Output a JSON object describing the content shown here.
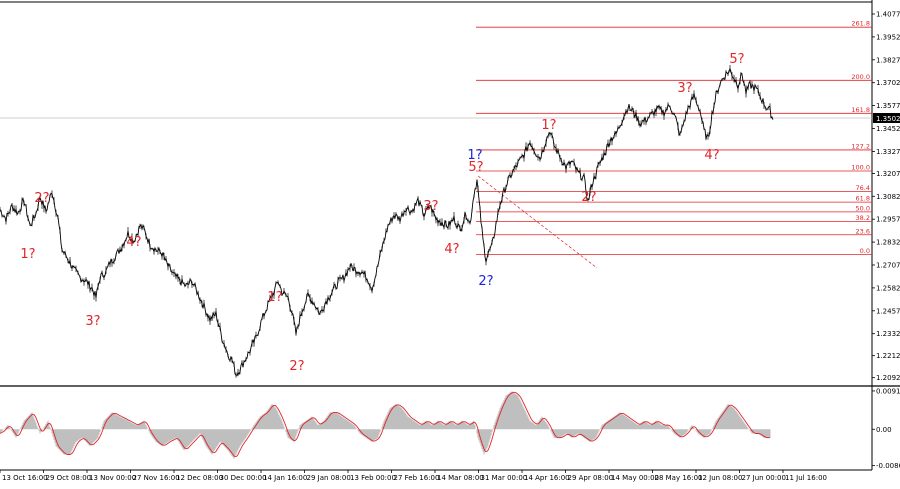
{
  "chart_data": {
    "type": "line",
    "main": {
      "instrument_price_current": "1.3502",
      "y_ticks": [
        "1.4077",
        "1.3952",
        "1.3827",
        "1.3702",
        "1.3577",
        "1.3452",
        "1.3327",
        "1.3207",
        "1.3082",
        "1.2957",
        "1.2832",
        "1.2707",
        "1.2582",
        "1.2457",
        "1.2332",
        "1.2212",
        "1.2092"
      ],
      "ylim": [
        1.2052,
        1.4137
      ],
      "fib_levels": [
        {
          "label": "261.8",
          "value": 1.4005
        },
        {
          "label": "200.0",
          "value": 1.3715
        },
        {
          "label": "161.8",
          "value": 1.3535
        },
        {
          "label": "127.2",
          "value": 1.3335
        },
        {
          "label": "100.0",
          "value": 1.322
        },
        {
          "label": "76.4",
          "value": 1.3108
        },
        {
          "label": "61.8",
          "value": 1.305
        },
        {
          "label": "50.0",
          "value": 1.2997
        },
        {
          "label": "38.2",
          "value": 1.2945
        },
        {
          "label": "23.6",
          "value": 1.2872
        },
        {
          "label": "0.0",
          "value": 1.2765
        }
      ],
      "price_series": [
        [
          0,
          1.301
        ],
        [
          6,
          1.296
        ],
        [
          12,
          1.303
        ],
        [
          18,
          1.299
        ],
        [
          24,
          1.306
        ],
        [
          30,
          1.292
        ],
        [
          36,
          1.299
        ],
        [
          40,
          1.308
        ],
        [
          46,
          1.3
        ],
        [
          52,
          1.311
        ],
        [
          58,
          1.296
        ],
        [
          62,
          1.279
        ],
        [
          68,
          1.274
        ],
        [
          74,
          1.268
        ],
        [
          80,
          1.264
        ],
        [
          86,
          1.262
        ],
        [
          92,
          1.258
        ],
        [
          96,
          1.253
        ],
        [
          100,
          1.264
        ],
        [
          106,
          1.267
        ],
        [
          110,
          1.272
        ],
        [
          116,
          1.276
        ],
        [
          122,
          1.281
        ],
        [
          128,
          1.288
        ],
        [
          134,
          1.284
        ],
        [
          140,
          1.292
        ],
        [
          144,
          1.29
        ],
        [
          150,
          1.282
        ],
        [
          156,
          1.279
        ],
        [
          162,
          1.277
        ],
        [
          168,
          1.27
        ],
        [
          174,
          1.265
        ],
        [
          180,
          1.262
        ],
        [
          186,
          1.259
        ],
        [
          192,
          1.262
        ],
        [
          198,
          1.255
        ],
        [
          204,
          1.248
        ],
        [
          210,
          1.241
        ],
        [
          216,
          1.244
        ],
        [
          222,
          1.231
        ],
        [
          228,
          1.222
        ],
        [
          232,
          1.219
        ],
        [
          236,
          1.211
        ],
        [
          240,
          1.214
        ],
        [
          244,
          1.218
        ],
        [
          250,
          1.224
        ],
        [
          256,
          1.231
        ],
        [
          262,
          1.241
        ],
        [
          268,
          1.249
        ],
        [
          274,
          1.256
        ],
        [
          278,
          1.262
        ],
        [
          282,
          1.256
        ],
        [
          288,
          1.253
        ],
        [
          292,
          1.245
        ],
        [
          296,
          1.233
        ],
        [
          302,
          1.246
        ],
        [
          308,
          1.254
        ],
        [
          314,
          1.25
        ],
        [
          320,
          1.244
        ],
        [
          326,
          1.251
        ],
        [
          332,
          1.256
        ],
        [
          338,
          1.261
        ],
        [
          344,
          1.264
        ],
        [
          350,
          1.27
        ],
        [
          356,
          1.268
        ],
        [
          362,
          1.267
        ],
        [
          368,
          1.263
        ],
        [
          372,
          1.258
        ],
        [
          376,
          1.266
        ],
        [
          382,
          1.28
        ],
        [
          388,
          1.292
        ],
        [
          394,
          1.298
        ],
        [
          400,
          1.296
        ],
        [
          406,
          1.302
        ],
        [
          412,
          1.3
        ],
        [
          418,
          1.306
        ],
        [
          424,
          1.298
        ],
        [
          430,
          1.303
        ],
        [
          436,
          1.296
        ],
        [
          442,
          1.294
        ],
        [
          448,
          1.292
        ],
        [
          454,
          1.296
        ],
        [
          460,
          1.29
        ],
        [
          466,
          1.299
        ],
        [
          470,
          1.293
        ],
        [
          474,
          1.31
        ],
        [
          477,
          1.317
        ],
        [
          480,
          1.3
        ],
        [
          483,
          1.284
        ],
        [
          486,
          1.274
        ],
        [
          489,
          1.278
        ],
        [
          492,
          1.281
        ],
        [
          496,
          1.293
        ],
        [
          500,
          1.304
        ],
        [
          506,
          1.314
        ],
        [
          512,
          1.321
        ],
        [
          518,
          1.326
        ],
        [
          524,
          1.331
        ],
        [
          530,
          1.338
        ],
        [
          536,
          1.332
        ],
        [
          540,
          1.329
        ],
        [
          546,
          1.339
        ],
        [
          550,
          1.344
        ],
        [
          554,
          1.336
        ],
        [
          560,
          1.33
        ],
        [
          566,
          1.324
        ],
        [
          572,
          1.327
        ],
        [
          578,
          1.321
        ],
        [
          584,
          1.318
        ],
        [
          588,
          1.305
        ],
        [
          592,
          1.315
        ],
        [
          598,
          1.324
        ],
        [
          604,
          1.331
        ],
        [
          610,
          1.339
        ],
        [
          616,
          1.342
        ],
        [
          622,
          1.35
        ],
        [
          628,
          1.357
        ],
        [
          634,
          1.354
        ],
        [
          640,
          1.348
        ],
        [
          646,
          1.35
        ],
        [
          652,
          1.353
        ],
        [
          658,
          1.356
        ],
        [
          664,
          1.354
        ],
        [
          670,
          1.358
        ],
        [
          676,
          1.35
        ],
        [
          680,
          1.341
        ],
        [
          684,
          1.349
        ],
        [
          688,
          1.356
        ],
        [
          694,
          1.363
        ],
        [
          700,
          1.355
        ],
        [
          704,
          1.344
        ],
        [
          708,
          1.339
        ],
        [
          712,
          1.353
        ],
        [
          716,
          1.363
        ],
        [
          720,
          1.37
        ],
        [
          726,
          1.375
        ],
        [
          730,
          1.377
        ],
        [
          734,
          1.373
        ],
        [
          738,
          1.369
        ],
        [
          742,
          1.375
        ],
        [
          746,
          1.365
        ],
        [
          750,
          1.369
        ],
        [
          756,
          1.367
        ],
        [
          762,
          1.361
        ],
        [
          766,
          1.357
        ],
        [
          770,
          1.355
        ],
        [
          773,
          1.35
        ]
      ],
      "wave_labels": [
        {
          "text": "2?",
          "color": "red"
        },
        {
          "text": "1?",
          "color": "red"
        },
        {
          "text": "3?",
          "color": "red"
        },
        {
          "text": "4?",
          "color": "red"
        },
        {
          "text": "2?",
          "color": "red"
        },
        {
          "text": "1?",
          "color": "red"
        },
        {
          "text": "3?",
          "color": "red"
        },
        {
          "text": "4?",
          "color": "red"
        },
        {
          "text": "1?",
          "color": "blue"
        },
        {
          "text": "5?",
          "color": "red"
        },
        {
          "text": "2?",
          "color": "blue"
        },
        {
          "text": "1?",
          "color": "red"
        },
        {
          "text": "2?",
          "color": "red"
        },
        {
          "text": "3?",
          "color": "red"
        },
        {
          "text": "4?",
          "color": "red"
        },
        {
          "text": "5?",
          "color": "red"
        }
      ]
    },
    "indicator": {
      "y_ticks": [
        "0.0091",
        "0.00",
        "-0.00862"
      ],
      "ylim": [
        -0.0092,
        0.0098
      ],
      "histogram": [
        [
          0,
          -0.001
        ],
        [
          8,
          0.001
        ],
        [
          16,
          -0.002
        ],
        [
          24,
          0.002
        ],
        [
          32,
          0.004
        ],
        [
          40,
          -0.001
        ],
        [
          48,
          0.002
        ],
        [
          56,
          -0.004
        ],
        [
          64,
          -0.006
        ],
        [
          70,
          -0.006
        ],
        [
          76,
          -0.003
        ],
        [
          82,
          -0.002
        ],
        [
          90,
          -0.004
        ],
        [
          98,
          -0.002
        ],
        [
          104,
          0.002
        ],
        [
          112,
          0.004
        ],
        [
          120,
          0.003
        ],
        [
          128,
          0.002
        ],
        [
          136,
          0.001
        ],
        [
          144,
          0.002
        ],
        [
          150,
          -0.001
        ],
        [
          156,
          -0.003
        ],
        [
          162,
          -0.004
        ],
        [
          168,
          -0.003
        ],
        [
          176,
          -0.002
        ],
        [
          184,
          -0.005
        ],
        [
          192,
          -0.003
        ],
        [
          200,
          -0.001
        ],
        [
          206,
          -0.004
        ],
        [
          212,
          -0.006
        ],
        [
          220,
          -0.003
        ],
        [
          228,
          -0.005
        ],
        [
          234,
          -0.007
        ],
        [
          240,
          -0.004
        ],
        [
          246,
          -0.002
        ],
        [
          254,
          0.001
        ],
        [
          260,
          0.003
        ],
        [
          266,
          0.004
        ],
        [
          272,
          0.006
        ],
        [
          276,
          0.005
        ],
        [
          282,
          0.002
        ],
        [
          288,
          -0.002
        ],
        [
          294,
          -0.003
        ],
        [
          300,
          0.001
        ],
        [
          306,
          0.002
        ],
        [
          312,
          0.003
        ],
        [
          318,
          0.001
        ],
        [
          324,
          0.002
        ],
        [
          330,
          0.004
        ],
        [
          336,
          0.004
        ],
        [
          342,
          0.003
        ],
        [
          348,
          0.002
        ],
        [
          354,
          0.001
        ],
        [
          360,
          -0.001
        ],
        [
          366,
          -0.002
        ],
        [
          372,
          -0.003
        ],
        [
          378,
          -0.002
        ],
        [
          384,
          0.002
        ],
        [
          390,
          0.005
        ],
        [
          396,
          0.006
        ],
        [
          402,
          0.005
        ],
        [
          408,
          0.003
        ],
        [
          414,
          0.002
        ],
        [
          420,
          0.001
        ],
        [
          426,
          0.002
        ],
        [
          432,
          0.001
        ],
        [
          438,
          0.002
        ],
        [
          444,
          0.001
        ],
        [
          450,
          0.002
        ],
        [
          456,
          0.001
        ],
        [
          462,
          0.002
        ],
        [
          468,
          0.001
        ],
        [
          474,
          0.002
        ],
        [
          478,
          -0.002
        ],
        [
          484,
          -0.006
        ],
        [
          488,
          -0.004
        ],
        [
          494,
          0.001
        ],
        [
          500,
          0.005
        ],
        [
          506,
          0.008
        ],
        [
          512,
          0.009
        ],
        [
          518,
          0.008
        ],
        [
          524,
          0.005
        ],
        [
          530,
          0.002
        ],
        [
          536,
          0.001
        ],
        [
          542,
          0.003
        ],
        [
          548,
          0.001
        ],
        [
          554,
          -0.002
        ],
        [
          560,
          -0.002
        ],
        [
          566,
          -0.001
        ],
        [
          572,
          -0.002
        ],
        [
          578,
          -0.001
        ],
        [
          584,
          -0.002
        ],
        [
          590,
          -0.003
        ],
        [
          596,
          -0.002
        ],
        [
          602,
          0.001
        ],
        [
          608,
          0.002
        ],
        [
          614,
          0.003
        ],
        [
          620,
          0.004
        ],
        [
          626,
          0.003
        ],
        [
          632,
          0.002
        ],
        [
          638,
          0.001
        ],
        [
          644,
          0.002
        ],
        [
          650,
          0.001
        ],
        [
          656,
          0.002
        ],
        [
          662,
          0.001
        ],
        [
          668,
          0.001
        ],
        [
          674,
          -0.001
        ],
        [
          680,
          -0.002
        ],
        [
          686,
          -0.001
        ],
        [
          692,
          0.001
        ],
        [
          698,
          -0.001
        ],
        [
          704,
          -0.002
        ],
        [
          710,
          -0.001
        ],
        [
          716,
          0.002
        ],
        [
          722,
          0.004
        ],
        [
          728,
          0.006
        ],
        [
          734,
          0.005
        ],
        [
          740,
          0.003
        ],
        [
          746,
          0.001
        ],
        [
          752,
          -0.001
        ],
        [
          758,
          -0.001
        ],
        [
          764,
          -0.002
        ],
        [
          770,
          -0.002
        ]
      ]
    },
    "x_ticks": [
      "13 Oct 16:00",
      "29 Oct 08:00",
      "13 Nov 00:00",
      "27 Nov 16:00",
      "12 Dec 08:00",
      "30 Dec 00:00",
      "14 Jan 16:00",
      "29 Jan 08:00",
      "13 Feb 00:00",
      "27 Feb 16:00",
      "14 Mar 08:00",
      "31 Mar 00:00",
      "14 Apr 16:00",
      "29 Apr 08:00",
      "14 May 00:00",
      "28 May 16:00",
      "12 Jun 08:00",
      "27 Jun 00:00",
      "11 Jul 16:00"
    ],
    "colors": {
      "price": "#000000",
      "fib": "#e0262b",
      "wave_red": "#e0262b",
      "wave_blue": "#1b25d6",
      "histogram": "#bfbfbf",
      "signal": "#e0262b",
      "price_tag_bg": "#000000",
      "price_tag_text": "#ffffff"
    }
  }
}
